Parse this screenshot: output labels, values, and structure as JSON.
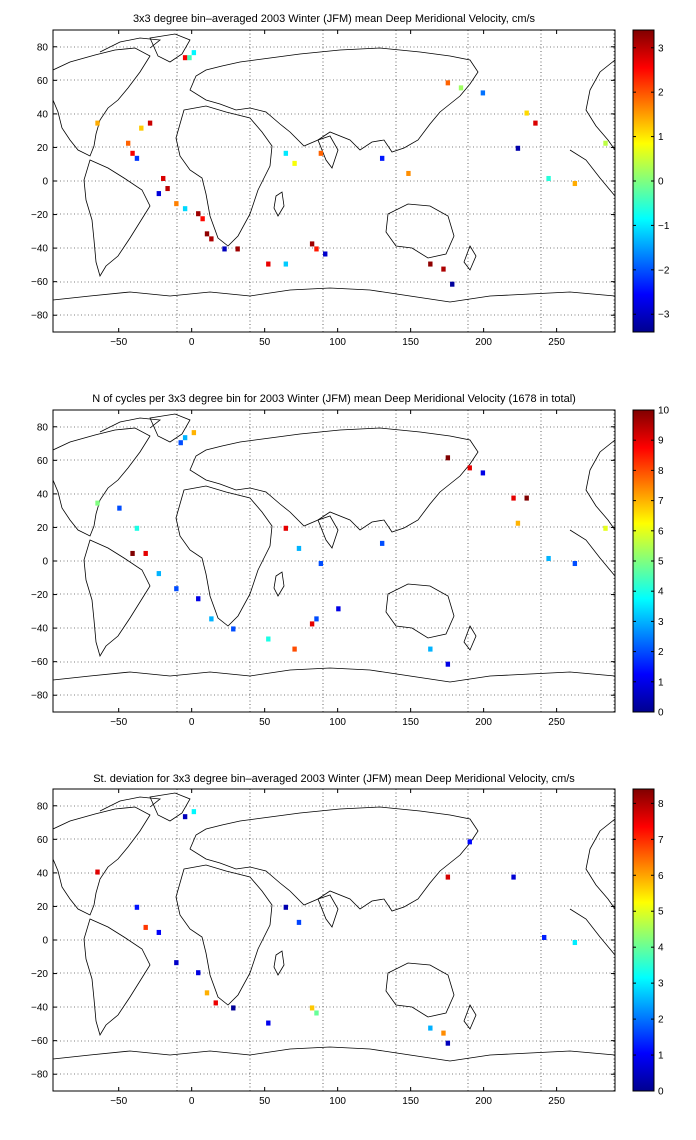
{
  "chart_data": [
    {
      "type": "heatmap",
      "title": "3x3 degree bin–averaged 2003 Winter (JFM) mean Deep Meridional Velocity, cm/s",
      "xlabel": "",
      "ylabel": "",
      "xlim": [
        -95,
        290
      ],
      "ylim": [
        -90,
        90
      ],
      "xticks": [
        -50,
        0,
        50,
        100,
        150,
        200,
        250
      ],
      "yticks": [
        80,
        60,
        40,
        20,
        0,
        -20,
        -40,
        -60,
        -80
      ],
      "grid": "dotted",
      "colormap": "jet",
      "clim": [
        -3.4,
        3.4
      ],
      "colorbar_ticks": [
        3,
        2,
        1,
        0,
        -1,
        -2,
        -3
      ],
      "bins": [
        {
          "x": -4.5,
          "y": 73.5,
          "v": 2.6
        },
        {
          "x": -1.5,
          "y": 73.5,
          "v": -0.4
        },
        {
          "x": 1.5,
          "y": 76.5,
          "v": -0.9
        },
        {
          "x": -64.5,
          "y": 34.5,
          "v": 1.4
        },
        {
          "x": -28.5,
          "y": 34.5,
          "v": 2.9
        },
        {
          "x": -34.5,
          "y": 31.5,
          "v": 1.2
        },
        {
          "x": -43.5,
          "y": 22.5,
          "v": 1.9
        },
        {
          "x": -40.5,
          "y": 16.5,
          "v": 2.6
        },
        {
          "x": -37.5,
          "y": 13.5,
          "v": -2.2
        },
        {
          "x": -19.5,
          "y": 1.5,
          "v": 2.8
        },
        {
          "x": -16.5,
          "y": -4.5,
          "v": 3.0
        },
        {
          "x": -22.5,
          "y": -7.5,
          "v": -2.8
        },
        {
          "x": -10.5,
          "y": -13.5,
          "v": 1.7
        },
        {
          "x": -4.5,
          "y": -16.5,
          "v": -1.1
        },
        {
          "x": 4.5,
          "y": -19.5,
          "v": 3.2
        },
        {
          "x": 7.5,
          "y": -22.5,
          "v": 2.5
        },
        {
          "x": 10.5,
          "y": -31.5,
          "v": 3.3
        },
        {
          "x": 13.5,
          "y": -34.5,
          "v": 3.1
        },
        {
          "x": 22.5,
          "y": -40.5,
          "v": -3.0
        },
        {
          "x": 31.5,
          "y": -40.5,
          "v": 3.2
        },
        {
          "x": 52.5,
          "y": -49.5,
          "v": 2.7
        },
        {
          "x": 64.5,
          "y": -49.5,
          "v": -1.2
        },
        {
          "x": 82.5,
          "y": -37.5,
          "v": 3.2
        },
        {
          "x": 85.5,
          "y": -40.5,
          "v": 2.4
        },
        {
          "x": 91.5,
          "y": -43.5,
          "v": -2.9
        },
        {
          "x": 64.5,
          "y": 16.5,
          "v": -1.0
        },
        {
          "x": 70.5,
          "y": 10.5,
          "v": 0.8
        },
        {
          "x": 88.5,
          "y": 16.5,
          "v": 1.9
        },
        {
          "x": 130.5,
          "y": 13.5,
          "v": -2.4
        },
        {
          "x": 148.5,
          "y": 4.5,
          "v": 1.6
        },
        {
          "x": 163.5,
          "y": -49.5,
          "v": 3.3
        },
        {
          "x": 172.5,
          "y": -52.5,
          "v": 3.1
        },
        {
          "x": 178.5,
          "y": -61.5,
          "v": -3.2
        },
        {
          "x": 175.5,
          "y": 58.5,
          "v": 1.9
        },
        {
          "x": 184.5,
          "y": 55.5,
          "v": 0.2
        },
        {
          "x": 199.5,
          "y": 52.5,
          "v": -1.8
        },
        {
          "x": 229.5,
          "y": 40.5,
          "v": 1.1
        },
        {
          "x": 235.5,
          "y": 34.5,
          "v": 2.8
        },
        {
          "x": 223.5,
          "y": 19.5,
          "v": -3.1
        },
        {
          "x": 244.5,
          "y": 1.5,
          "v": -0.6
        },
        {
          "x": 262.5,
          "y": -1.5,
          "v": 1.4
        },
        {
          "x": 283.5,
          "y": 22.5,
          "v": 0.4
        }
      ]
    },
    {
      "type": "heatmap",
      "title": "N of cycles per 3x3 degree bin for 2003 Winter (JFM) mean Deep Meridional Velocity (1678 in total)",
      "xlabel": "",
      "ylabel": "",
      "xlim": [
        -95,
        290
      ],
      "ylim": [
        -90,
        90
      ],
      "xticks": [
        -50,
        0,
        50,
        100,
        150,
        200,
        250
      ],
      "yticks": [
        80,
        60,
        40,
        20,
        0,
        -20,
        -40,
        -60,
        -80
      ],
      "grid": "dotted",
      "colormap": "jet",
      "clim": [
        0,
        10
      ],
      "colorbar_ticks": [
        10,
        9,
        8,
        7,
        6,
        5,
        4,
        3,
        2,
        1,
        0
      ],
      "bins": [
        {
          "x": -4.5,
          "y": 73.5,
          "v": 3
        },
        {
          "x": 1.5,
          "y": 76.5,
          "v": 7
        },
        {
          "x": -7.5,
          "y": 70.5,
          "v": 2
        },
        {
          "x": -64.5,
          "y": 34.5,
          "v": 5
        },
        {
          "x": -49.5,
          "y": 31.5,
          "v": 2
        },
        {
          "x": -37.5,
          "y": 19.5,
          "v": 4
        },
        {
          "x": -40.5,
          "y": 4.5,
          "v": 10
        },
        {
          "x": -31.5,
          "y": 4.5,
          "v": 9
        },
        {
          "x": -22.5,
          "y": -7.5,
          "v": 3
        },
        {
          "x": -10.5,
          "y": -16.5,
          "v": 2
        },
        {
          "x": 4.5,
          "y": -22.5,
          "v": 1
        },
        {
          "x": 13.5,
          "y": -34.5,
          "v": 3
        },
        {
          "x": 28.5,
          "y": -40.5,
          "v": 2
        },
        {
          "x": 52.5,
          "y": -46.5,
          "v": 4
        },
        {
          "x": 70.5,
          "y": -52.5,
          "v": 8
        },
        {
          "x": 82.5,
          "y": -37.5,
          "v": 9
        },
        {
          "x": 85.5,
          "y": -34.5,
          "v": 2
        },
        {
          "x": 100.5,
          "y": -28.5,
          "v": 1
        },
        {
          "x": 64.5,
          "y": 19.5,
          "v": 9
        },
        {
          "x": 73.5,
          "y": 7.5,
          "v": 3
        },
        {
          "x": 88.5,
          "y": -1.5,
          "v": 2
        },
        {
          "x": 130.5,
          "y": 10.5,
          "v": 2
        },
        {
          "x": 163.5,
          "y": -52.5,
          "v": 3
        },
        {
          "x": 175.5,
          "y": -61.5,
          "v": 1
        },
        {
          "x": 175.5,
          "y": 61.5,
          "v": 10
        },
        {
          "x": 190.5,
          "y": 55.5,
          "v": 9
        },
        {
          "x": 199.5,
          "y": 52.5,
          "v": 1
        },
        {
          "x": 220.5,
          "y": 37.5,
          "v": 9
        },
        {
          "x": 229.5,
          "y": 37.5,
          "v": 10
        },
        {
          "x": 223.5,
          "y": 22.5,
          "v": 7
        },
        {
          "x": 244.5,
          "y": 1.5,
          "v": 3
        },
        {
          "x": 262.5,
          "y": -1.5,
          "v": 2
        },
        {
          "x": 283.5,
          "y": 19.5,
          "v": 6
        }
      ]
    },
    {
      "type": "heatmap",
      "title": "St. deviation for 3x3 degree bin–averaged 2003 Winter (JFM) mean Deep Meridional Velocity, cm/s",
      "xlabel": "",
      "ylabel": "",
      "xlim": [
        -95,
        290
      ],
      "ylim": [
        -90,
        90
      ],
      "xticks": [
        -50,
        0,
        50,
        100,
        150,
        200,
        250
      ],
      "yticks": [
        80,
        60,
        40,
        20,
        0,
        -20,
        -40,
        -60,
        -80
      ],
      "grid": "dotted",
      "colormap": "jet",
      "clim": [
        0,
        8.4
      ],
      "colorbar_ticks": [
        8,
        7,
        6,
        5,
        4,
        3,
        2,
        1,
        0
      ],
      "bins": [
        {
          "x": -4.5,
          "y": 73.5,
          "v": 0.5
        },
        {
          "x": 1.5,
          "y": 76.5,
          "v": 3.1
        },
        {
          "x": -64.5,
          "y": 40.5,
          "v": 7.6
        },
        {
          "x": -37.5,
          "y": 19.5,
          "v": 1.2
        },
        {
          "x": -31.5,
          "y": 7.5,
          "v": 6.9
        },
        {
          "x": -22.5,
          "y": 4.5,
          "v": 1.0
        },
        {
          "x": -10.5,
          "y": -13.5,
          "v": 0.6
        },
        {
          "x": 4.5,
          "y": -19.5,
          "v": 0.8
        },
        {
          "x": 10.5,
          "y": -31.5,
          "v": 5.9
        },
        {
          "x": 16.5,
          "y": -37.5,
          "v": 7.5
        },
        {
          "x": 28.5,
          "y": -40.5,
          "v": 0.2
        },
        {
          "x": 52.5,
          "y": -49.5,
          "v": 0.9
        },
        {
          "x": 82.5,
          "y": -40.5,
          "v": 5.7
        },
        {
          "x": 85.5,
          "y": -43.5,
          "v": 4.0
        },
        {
          "x": 64.5,
          "y": 19.5,
          "v": 0.4
        },
        {
          "x": 73.5,
          "y": 10.5,
          "v": 1.6
        },
        {
          "x": 163.5,
          "y": -52.5,
          "v": 2.5
        },
        {
          "x": 172.5,
          "y": -55.5,
          "v": 6.2
        },
        {
          "x": 175.5,
          "y": -61.5,
          "v": 0.5
        },
        {
          "x": 175.5,
          "y": 37.5,
          "v": 7.7
        },
        {
          "x": 190.5,
          "y": 58.5,
          "v": 1.1
        },
        {
          "x": 220.5,
          "y": 37.5,
          "v": 0.7
        },
        {
          "x": 241.5,
          "y": 1.5,
          "v": 1.3
        },
        {
          "x": 262.5,
          "y": -1.5,
          "v": 3.0
        }
      ]
    }
  ]
}
